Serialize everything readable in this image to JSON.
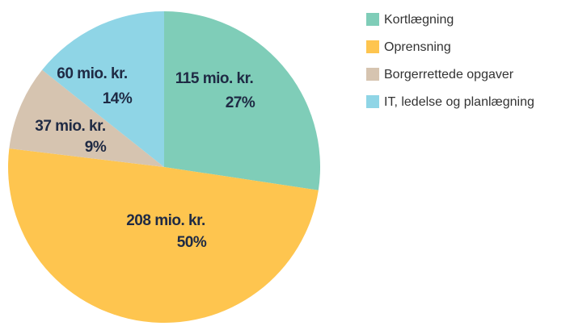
{
  "chart_data": {
    "type": "pie",
    "categories": [
      "Kortlægning",
      "Oprensning",
      "Borgerrettede opgaver",
      "IT, ledelse og planlægning"
    ],
    "values": [
      115,
      208,
      37,
      60
    ],
    "value_labels": [
      "115 mio. kr.",
      "208 mio. kr.",
      "37 mio. kr.",
      "60 mio. kr."
    ],
    "percentage_labels": [
      "27%",
      "50%",
      "9%",
      "14%"
    ],
    "colors": [
      "#7fcdb8",
      "#fec54f",
      "#d6c4b0",
      "#8fd5e6"
    ],
    "legend": "right"
  }
}
